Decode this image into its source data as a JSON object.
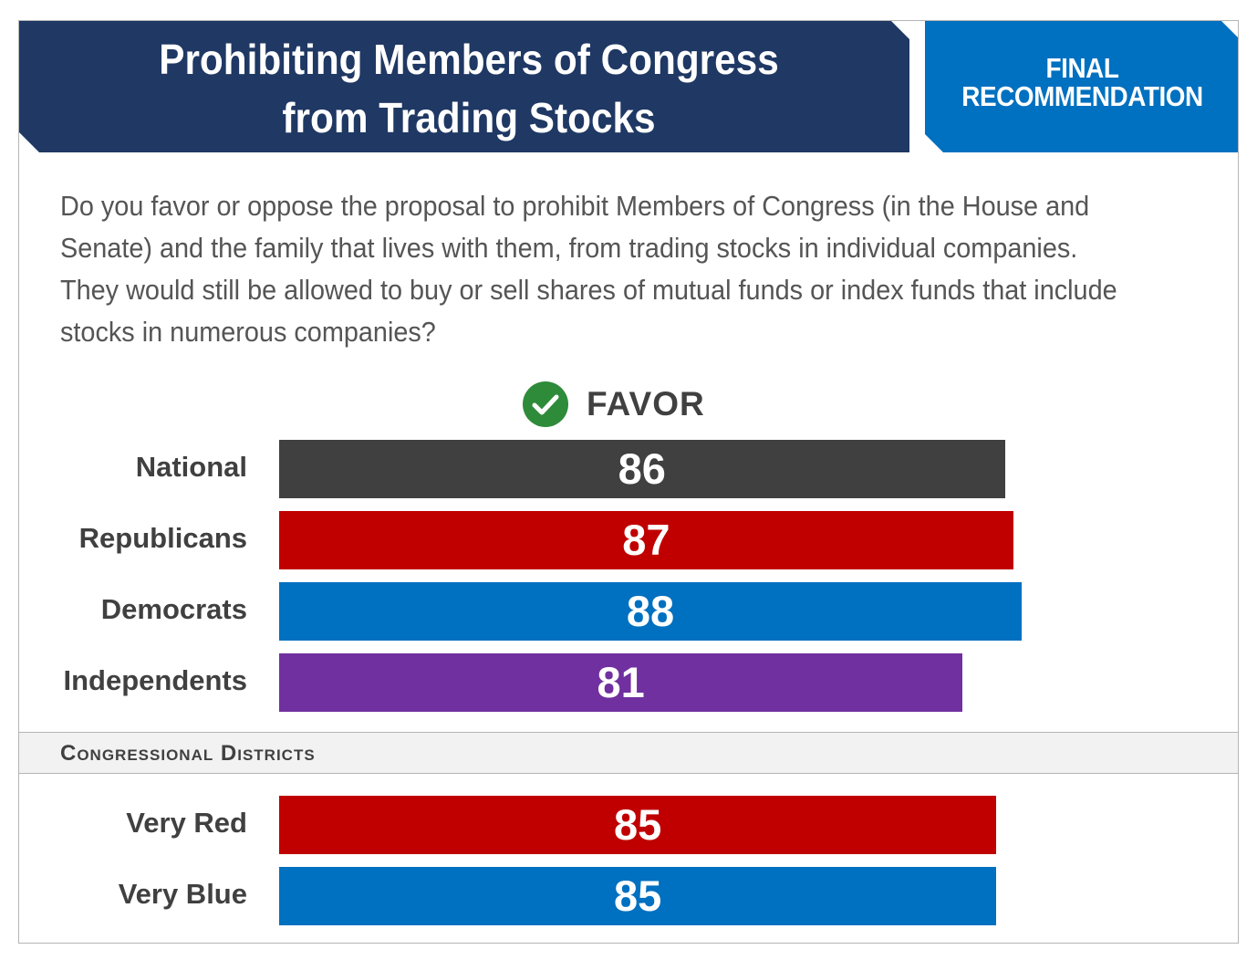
{
  "header": {
    "title": "Prohibiting Members of Congress\nfrom Trading Stocks",
    "badge": "FINAL\nRECOMMENDATION"
  },
  "question": "Do you favor or oppose the proposal to prohibit Members of Congress (in the House and Senate) and the family that lives with them, from trading stocks in individual companies. They would still be allowed to buy or sell shares of mutual funds or index funds that include stocks in numerous companies?",
  "favor": {
    "label": "FAVOR",
    "icon": "check-circle-icon",
    "icon_color": "#2e8b3a"
  },
  "section_label": "Congressional Districts",
  "chart_data": [
    {
      "type": "bar",
      "orientation": "horizontal",
      "categories": [
        "National",
        "Republicans",
        "Democrats",
        "Independents"
      ],
      "values": [
        86,
        87,
        88,
        81
      ],
      "colors": [
        "#404040",
        "#c00000",
        "#0070c0",
        "#7030a0"
      ],
      "series": [
        {
          "name": "FAVOR",
          "values": [
            86,
            87,
            88,
            81
          ]
        }
      ]
    },
    {
      "type": "bar",
      "orientation": "horizontal",
      "categories": [
        "Very Red",
        "Very Blue"
      ],
      "values": [
        85,
        85
      ],
      "colors": [
        "#c00000",
        "#0070c0"
      ],
      "series": [
        {
          "name": "FAVOR",
          "values": [
            85,
            85
          ]
        }
      ]
    }
  ]
}
